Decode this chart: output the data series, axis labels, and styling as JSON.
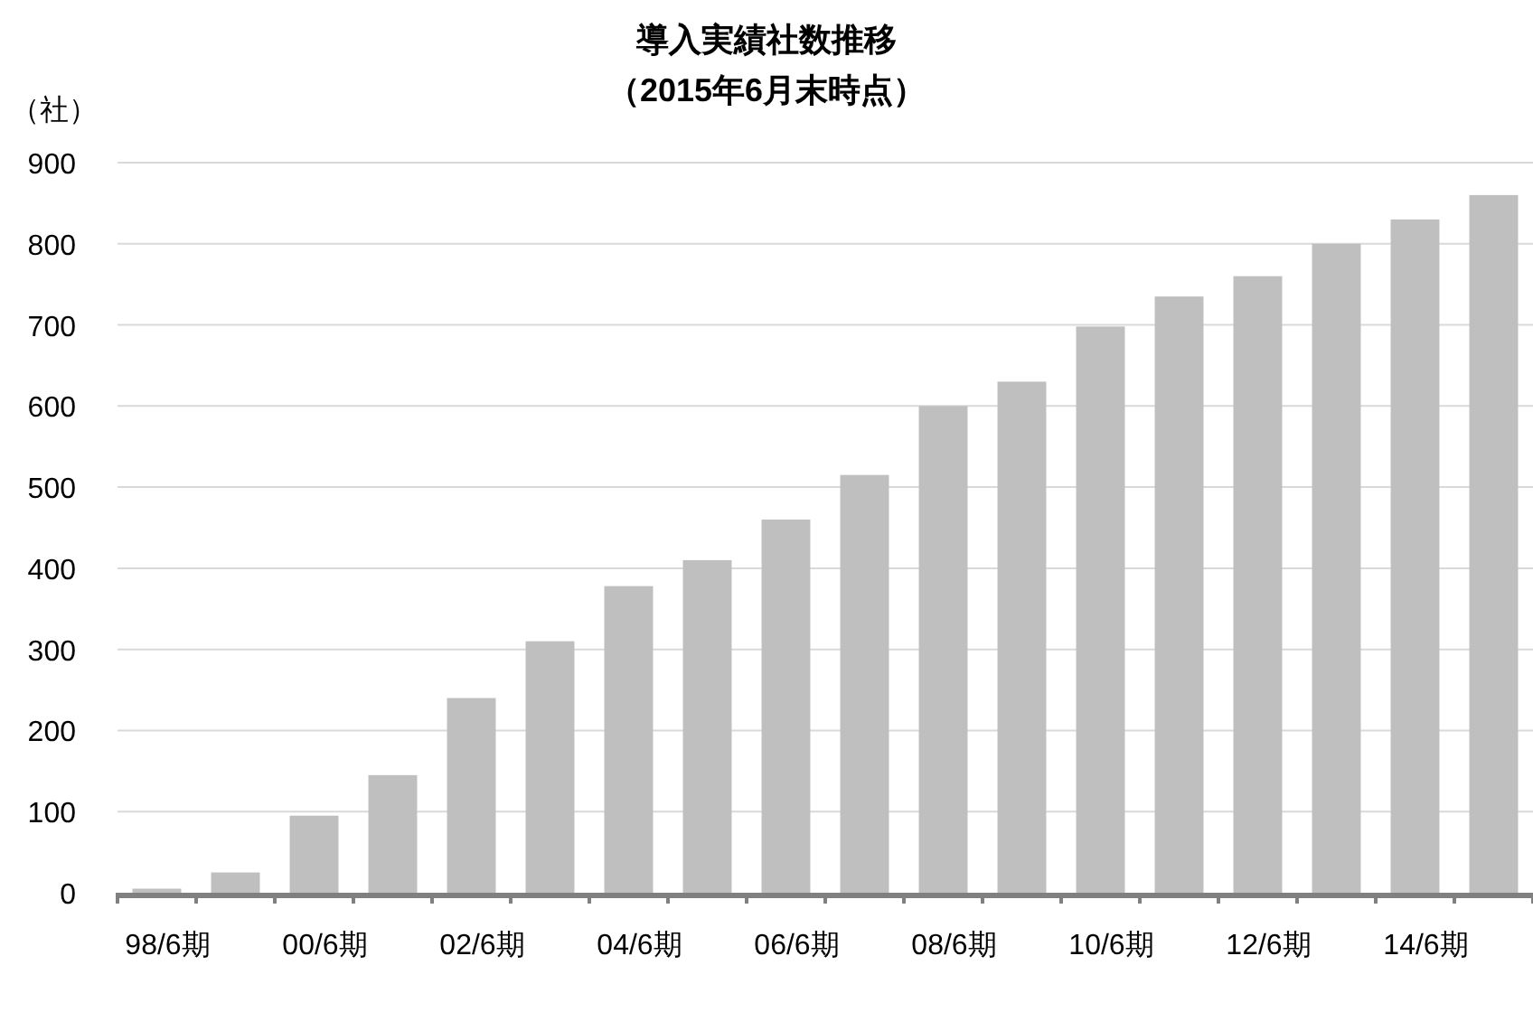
{
  "chart_data": {
    "type": "bar",
    "title": "導入実績社数推移",
    "subtitle": "（2015年6月末時点）",
    "ylabel": "（社）",
    "categories": [
      "98/6期",
      null,
      "00/6期",
      null,
      "02/6期",
      null,
      "04/6期",
      null,
      "06/6期",
      null,
      "08/6期",
      null,
      "10/6期",
      null,
      "12/6期",
      null,
      "14/6期",
      null
    ],
    "values": [
      5,
      25,
      95,
      145,
      240,
      310,
      378,
      410,
      460,
      515,
      600,
      630,
      698,
      735,
      760,
      800,
      830,
      860
    ],
    "color": "#bfbfbf",
    "ylim": [
      0,
      900
    ],
    "yticks": [
      0,
      100,
      200,
      300,
      400,
      500,
      600,
      700,
      800,
      900
    ],
    "grid": "y"
  }
}
